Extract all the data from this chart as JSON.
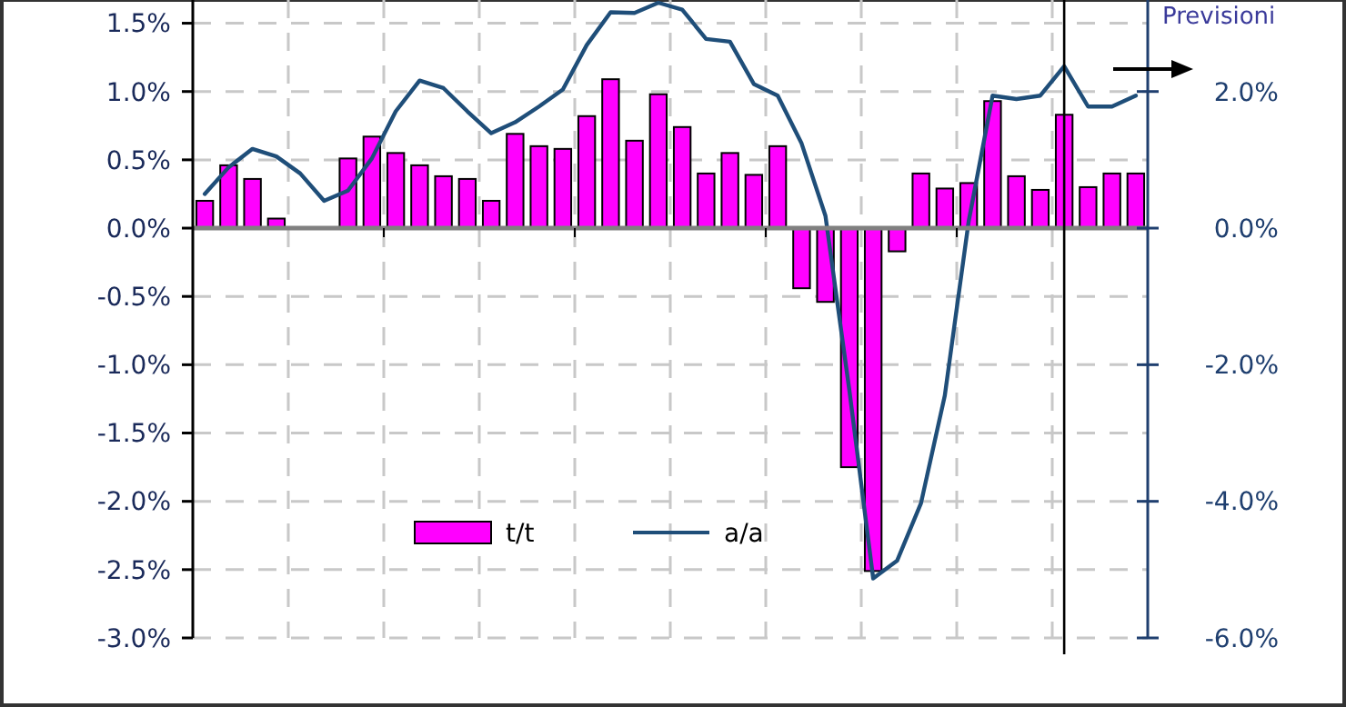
{
  "chart_data": {
    "type": "bar",
    "categories": [
      null,
      null,
      null,
      null,
      null,
      null,
      null,
      null,
      null,
      null,
      null,
      null,
      null,
      null,
      null,
      null,
      null,
      null,
      null,
      null,
      null,
      null,
      null,
      null,
      null,
      null,
      null,
      null,
      null,
      null,
      null,
      null,
      null,
      null,
      null,
      null,
      null,
      null,
      null,
      null
    ],
    "series": [
      {
        "name": "t/t",
        "color": "#ff00ff",
        "values": [
          0.2,
          0.46,
          0.36,
          0.07,
          null,
          null,
          0.51,
          0.67,
          0.55,
          0.46,
          0.38,
          0.36,
          0.2,
          0.69,
          0.6,
          0.58,
          0.82,
          1.09,
          0.64,
          0.98,
          0.74,
          0.4,
          0.55,
          0.39,
          0.6,
          -0.44,
          -0.54,
          -1.75,
          -2.51,
          -0.17,
          0.4,
          0.29,
          0.33,
          0.93,
          0.38,
          0.28,
          0.83,
          0.3,
          0.4,
          0.4
        ]
      },
      {
        "name": "a/a",
        "type": "line",
        "axis": "y2",
        "color": "#1f4e79",
        "values": [
          0.5,
          0.89,
          1.16,
          1.05,
          0.8,
          0.4,
          0.55,
          1.02,
          1.71,
          2.16,
          2.05,
          1.71,
          1.39,
          1.55,
          1.78,
          2.03,
          2.68,
          3.16,
          3.15,
          3.3,
          3.2,
          2.77,
          2.73,
          2.11,
          1.94,
          1.24,
          0.18,
          -2.37,
          -5.13,
          -4.87,
          -4.03,
          -2.45,
          0.1,
          1.94,
          1.89,
          1.94,
          2.37,
          1.78,
          1.78,
          1.94
        ]
      }
    ],
    "ylim": [
      -3,
      1.67
    ],
    "yticks": [
      {
        "value": -3,
        "label": "-3.0%"
      },
      {
        "value": -2.5,
        "label": "-2.5%"
      },
      {
        "value": -2,
        "label": "-2.0%"
      },
      {
        "value": -1.5,
        "label": "-1.5%"
      },
      {
        "value": -1,
        "label": "-1.0%"
      },
      {
        "value": -0.5,
        "label": "-0.5%"
      },
      {
        "value": 0,
        "label": "0.0%"
      },
      {
        "value": 0.5,
        "label": "0.5%"
      },
      {
        "value": 1,
        "label": "1.0%"
      },
      {
        "value": 1.5,
        "label": "1.5%"
      }
    ],
    "y2lim": [
      -6,
      3.34
    ],
    "y2ticks": [
      {
        "value": -6,
        "label": "-6.0%"
      },
      {
        "value": -4,
        "label": "-4.0%"
      },
      {
        "value": -2,
        "label": "-2.0%"
      },
      {
        "value": 0,
        "label": "0.0%"
      },
      {
        "value": 2,
        "label": "2.0%"
      }
    ],
    "annotations": [
      "Previsioni"
    ],
    "grid": true,
    "legend": "bottom",
    "tick_labels": "y"
  }
}
